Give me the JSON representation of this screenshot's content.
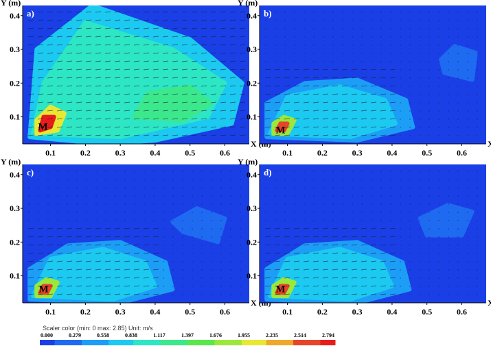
{
  "colors": {
    "background": "#1b3fe6",
    "scale": [
      "#1b3fe6",
      "#1e6af0",
      "#1c9ef7",
      "#1cc9f0",
      "#2de6c4",
      "#3ce88c",
      "#58e84a",
      "#9be83b",
      "#e8e832",
      "#f0a82a",
      "#e8442a",
      "#e81c1c"
    ]
  },
  "colorbar": {
    "caption": "Scaler color (min: 0 max: 2.85)  Unit: m/s",
    "ticks": [
      "0.000",
      "0.279",
      "0.558",
      "0.838",
      "1.117",
      "1.397",
      "1.676",
      "1.955",
      "2.235",
      "2.514",
      "2.794"
    ]
  },
  "chart_data": [
    {
      "type": "heatmap",
      "panel": "a)",
      "marker": "M",
      "xlabel": "X (m)",
      "ylabel": "Y (m)",
      "xticks": [
        "0.1",
        "0.2",
        "0.3",
        "0.4",
        "0.5",
        "0.6"
      ],
      "yticks": [
        "0.1",
        "0.2",
        "0.3",
        "0.4"
      ],
      "xlim": [
        0.02,
        0.67
      ],
      "ylim": [
        0.02,
        0.43
      ],
      "regions": [
        {
          "x": [
            0.04,
            0.25,
            0.4,
            0.62,
            0.65,
            0.5,
            0.22,
            0.06
          ],
          "y": [
            0.04,
            0.02,
            0.03,
            0.08,
            0.2,
            0.33,
            0.43,
            0.3
          ],
          "level": 0.7
        },
        {
          "x": [
            0.05,
            0.3,
            0.55,
            0.6,
            0.45,
            0.2,
            0.08
          ],
          "y": [
            0.05,
            0.04,
            0.1,
            0.2,
            0.3,
            0.38,
            0.2
          ],
          "level": 1.0
        },
        {
          "x": [
            0.34,
            0.48,
            0.56,
            0.5,
            0.38
          ],
          "y": [
            0.1,
            0.09,
            0.14,
            0.19,
            0.17
          ],
          "level": 1.35
        },
        {
          "x": [
            0.06,
            0.12,
            0.14,
            0.1,
            0.06
          ],
          "y": [
            0.05,
            0.06,
            0.11,
            0.13,
            0.09
          ],
          "level": 2.2
        },
        {
          "x": [
            0.07,
            0.1,
            0.11,
            0.08
          ],
          "y": [
            0.06,
            0.07,
            0.1,
            0.1
          ],
          "level": 2.75
        }
      ]
    },
    {
      "type": "heatmap",
      "panel": "b)",
      "marker": "M",
      "xlabel": "X (m)",
      "ylabel": "Y (m)",
      "xticks": [
        "0.1",
        "0.2",
        "0.3",
        "0.4",
        "0.5",
        "0.6"
      ],
      "yticks": [
        "0.1",
        "0.2",
        "0.3",
        "0.4"
      ],
      "xlim": [
        0.02,
        0.67
      ],
      "ylim": [
        0.02,
        0.43
      ],
      "regions": [
        {
          "x": [
            0.04,
            0.3,
            0.46,
            0.44,
            0.3,
            0.15,
            0.04
          ],
          "y": [
            0.04,
            0.03,
            0.07,
            0.15,
            0.21,
            0.2,
            0.14
          ],
          "level": 0.45
        },
        {
          "x": [
            0.05,
            0.28,
            0.41,
            0.38,
            0.25,
            0.1
          ],
          "y": [
            0.05,
            0.04,
            0.08,
            0.15,
            0.19,
            0.16
          ],
          "level": 0.75
        },
        {
          "x": [
            0.55,
            0.63,
            0.64,
            0.58,
            0.54
          ],
          "y": [
            0.23,
            0.21,
            0.29,
            0.31,
            0.27
          ],
          "level": 0.25
        },
        {
          "x": [
            0.06,
            0.1,
            0.12,
            0.09,
            0.06
          ],
          "y": [
            0.05,
            0.05,
            0.09,
            0.1,
            0.08
          ],
          "level": 1.9
        },
        {
          "x": [
            0.07,
            0.09,
            0.1,
            0.08
          ],
          "y": [
            0.06,
            0.06,
            0.08,
            0.08
          ],
          "level": 2.6
        }
      ]
    },
    {
      "type": "heatmap",
      "panel": "c)",
      "marker": "M",
      "xlabel": "X (m)",
      "ylabel": "Y (m)",
      "xticks": [
        "0.1",
        "0.2",
        "0.3",
        "0.4",
        "0.5",
        "0.6"
      ],
      "yticks": [
        "0.1",
        "0.2",
        "0.3",
        "0.4"
      ],
      "xlim": [
        0.02,
        0.67
      ],
      "ylim": [
        0.02,
        0.43
      ],
      "regions": [
        {
          "x": [
            0.04,
            0.3,
            0.45,
            0.43,
            0.3,
            0.15,
            0.04
          ],
          "y": [
            0.03,
            0.02,
            0.06,
            0.14,
            0.2,
            0.19,
            0.12
          ],
          "level": 0.45
        },
        {
          "x": [
            0.05,
            0.28,
            0.4,
            0.37,
            0.25,
            0.1
          ],
          "y": [
            0.04,
            0.03,
            0.07,
            0.14,
            0.18,
            0.15
          ],
          "level": 0.75
        },
        {
          "x": [
            0.48,
            0.58,
            0.6,
            0.52,
            0.45
          ],
          "y": [
            0.23,
            0.2,
            0.27,
            0.3,
            0.26
          ],
          "level": 0.25
        },
        {
          "x": [
            0.06,
            0.1,
            0.12,
            0.09,
            0.06
          ],
          "y": [
            0.04,
            0.04,
            0.08,
            0.09,
            0.07
          ],
          "level": 1.9
        },
        {
          "x": [
            0.07,
            0.09,
            0.1,
            0.08
          ],
          "y": [
            0.05,
            0.05,
            0.07,
            0.07
          ],
          "level": 2.6
        }
      ]
    },
    {
      "type": "heatmap",
      "panel": "d)",
      "marker": "M",
      "xlabel": "X (m)",
      "ylabel": "Y (m)",
      "xticks": [
        "0.1",
        "0.2",
        "0.3",
        "0.4",
        "0.5",
        "0.6"
      ],
      "yticks": [
        "0.1",
        "0.2",
        "0.3",
        "0.4"
      ],
      "xlim": [
        0.02,
        0.67
      ],
      "ylim": [
        0.02,
        0.43
      ],
      "regions": [
        {
          "x": [
            0.04,
            0.3,
            0.45,
            0.43,
            0.3,
            0.15,
            0.04
          ],
          "y": [
            0.03,
            0.02,
            0.06,
            0.14,
            0.2,
            0.19,
            0.12
          ],
          "level": 0.45
        },
        {
          "x": [
            0.05,
            0.28,
            0.4,
            0.37,
            0.25,
            0.1
          ],
          "y": [
            0.04,
            0.03,
            0.07,
            0.14,
            0.18,
            0.15
          ],
          "level": 0.75
        },
        {
          "x": [
            0.5,
            0.6,
            0.63,
            0.56,
            0.48
          ],
          "y": [
            0.22,
            0.22,
            0.29,
            0.31,
            0.27
          ],
          "level": 0.25
        },
        {
          "x": [
            0.06,
            0.1,
            0.12,
            0.09,
            0.06
          ],
          "y": [
            0.04,
            0.04,
            0.08,
            0.09,
            0.07
          ],
          "level": 1.9
        },
        {
          "x": [
            0.07,
            0.09,
            0.1,
            0.08
          ],
          "y": [
            0.05,
            0.05,
            0.07,
            0.07
          ],
          "level": 2.6
        }
      ]
    }
  ]
}
